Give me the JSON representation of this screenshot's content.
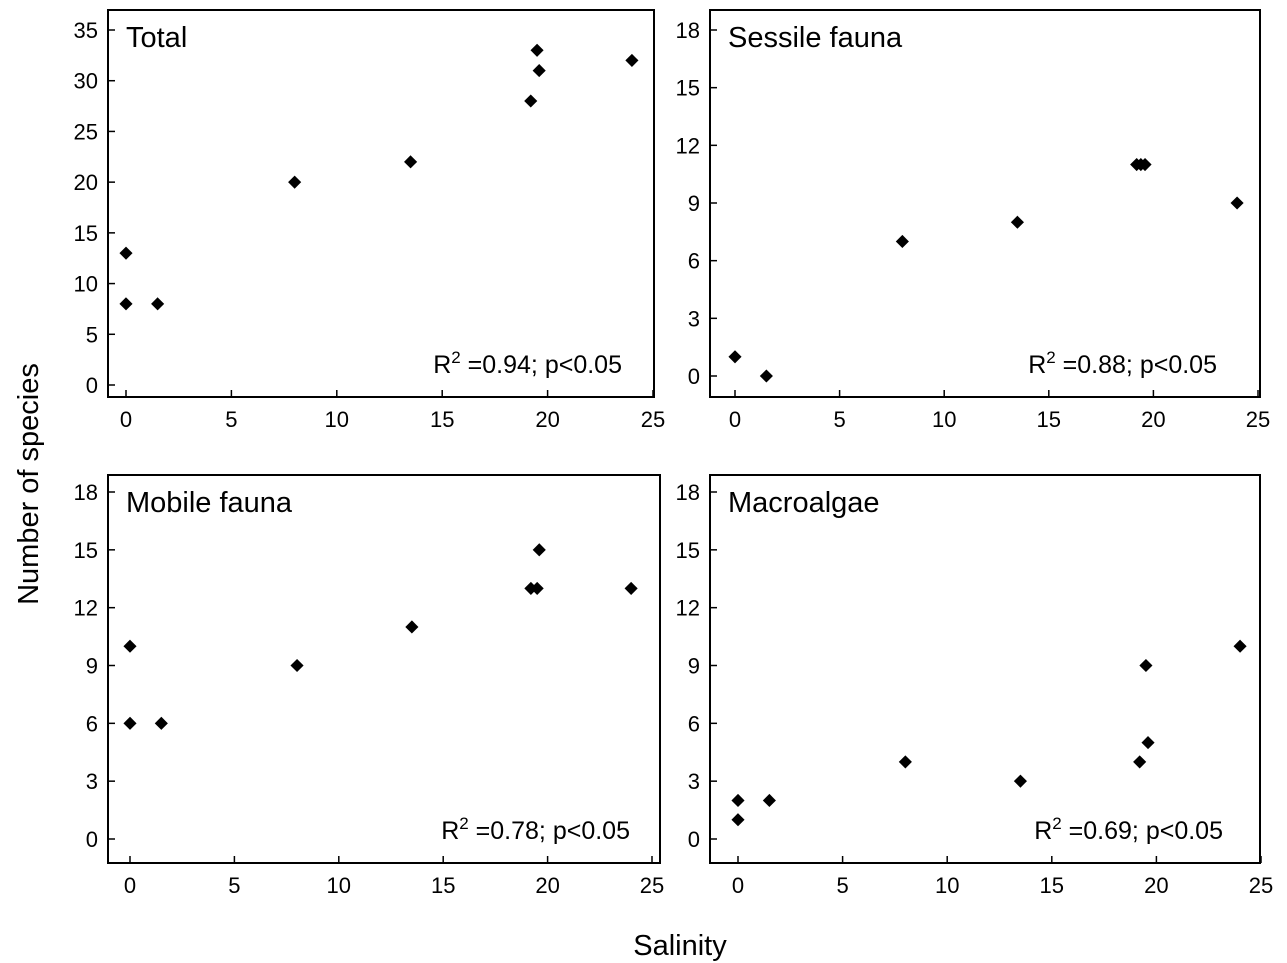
{
  "figure": {
    "ylabel": "Number of species",
    "xlabel": "Salinity"
  },
  "chart_data": [
    {
      "type": "scatter",
      "title": "Total",
      "annotation": {
        "base": "R",
        "sup": "2",
        "rest": " =0.94; p<0.05"
      },
      "xlabel": "Salinity",
      "ylabel": "Number of species",
      "xlim": [
        0,
        25
      ],
      "ylim": [
        0,
        35
      ],
      "xticks": [
        0,
        5,
        10,
        15,
        20,
        25
      ],
      "yticks": [
        0,
        5,
        10,
        15,
        20,
        25,
        30,
        35
      ],
      "grid": false,
      "points": [
        {
          "x": 0,
          "y": 13
        },
        {
          "x": 0,
          "y": 8
        },
        {
          "x": 1.5,
          "y": 8
        },
        {
          "x": 8,
          "y": 20
        },
        {
          "x": 13.5,
          "y": 22
        },
        {
          "x": 19.2,
          "y": 28
        },
        {
          "x": 19.5,
          "y": 33
        },
        {
          "x": 19.6,
          "y": 31
        },
        {
          "x": 24,
          "y": 32
        }
      ]
    },
    {
      "type": "scatter",
      "title": "Sessile fauna",
      "annotation": {
        "base": "R",
        "sup": "2",
        "rest": " =0.88; p<0.05"
      },
      "xlabel": "Salinity",
      "ylabel": "Number of species",
      "xlim": [
        0,
        25
      ],
      "ylim": [
        0,
        18
      ],
      "xticks": [
        0,
        5,
        10,
        15,
        20,
        25
      ],
      "yticks": [
        0,
        3,
        6,
        9,
        12,
        15,
        18
      ],
      "grid": false,
      "points": [
        {
          "x": 0,
          "y": 1
        },
        {
          "x": 1.5,
          "y": 0
        },
        {
          "x": 8,
          "y": 7
        },
        {
          "x": 13.5,
          "y": 8
        },
        {
          "x": 19.2,
          "y": 11
        },
        {
          "x": 19.4,
          "y": 11
        },
        {
          "x": 19.6,
          "y": 11
        },
        {
          "x": 24,
          "y": 9
        }
      ]
    },
    {
      "type": "scatter",
      "title": "Mobile fauna",
      "annotation": {
        "base": "R",
        "sup": "2",
        "rest": " =0.78; p<0.05"
      },
      "xlabel": "Salinity",
      "ylabel": "Number of species",
      "xlim": [
        0,
        25
      ],
      "ylim": [
        0,
        18
      ],
      "xticks": [
        0,
        5,
        10,
        15,
        20,
        25
      ],
      "yticks": [
        0,
        3,
        6,
        9,
        12,
        15,
        18
      ],
      "grid": false,
      "points": [
        {
          "x": 0,
          "y": 10
        },
        {
          "x": 0,
          "y": 6
        },
        {
          "x": 1.5,
          "y": 6
        },
        {
          "x": 8,
          "y": 9
        },
        {
          "x": 13.5,
          "y": 11
        },
        {
          "x": 19.2,
          "y": 13
        },
        {
          "x": 19.5,
          "y": 13
        },
        {
          "x": 19.6,
          "y": 15
        },
        {
          "x": 24,
          "y": 13
        }
      ]
    },
    {
      "type": "scatter",
      "title": "Macroalgae",
      "annotation": {
        "base": "R",
        "sup": "2",
        "rest": " =0.69; p<0.05"
      },
      "xlabel": "Salinity",
      "ylabel": "Number of species",
      "xlim": [
        0,
        25
      ],
      "ylim": [
        0,
        18
      ],
      "xticks": [
        0,
        5,
        10,
        15,
        20,
        25
      ],
      "yticks": [
        0,
        3,
        6,
        9,
        12,
        15,
        18
      ],
      "grid": false,
      "points": [
        {
          "x": 0,
          "y": 2
        },
        {
          "x": 0,
          "y": 1
        },
        {
          "x": 1.5,
          "y": 2
        },
        {
          "x": 8,
          "y": 4
        },
        {
          "x": 13.5,
          "y": 3
        },
        {
          "x": 19.2,
          "y": 4
        },
        {
          "x": 19.5,
          "y": 9
        },
        {
          "x": 19.6,
          "y": 5
        },
        {
          "x": 24,
          "y": 10
        }
      ]
    }
  ]
}
